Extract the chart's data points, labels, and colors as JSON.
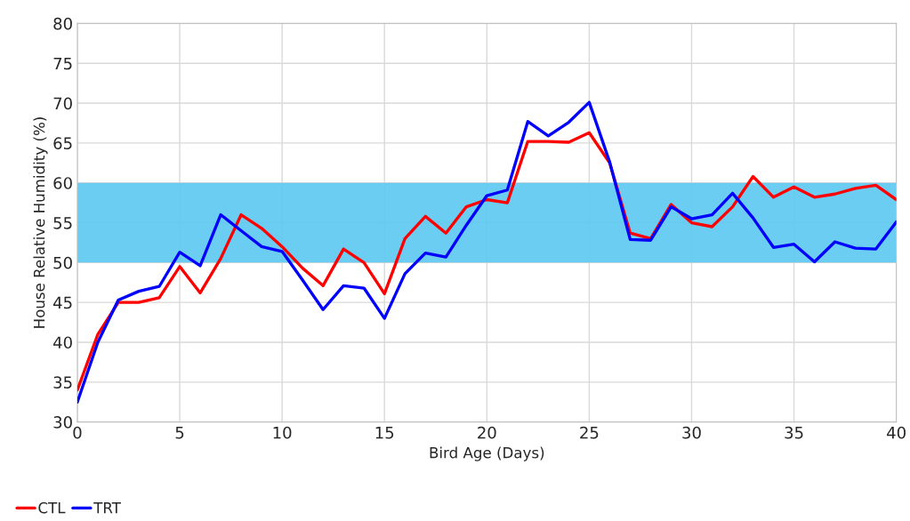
{
  "chart_data": {
    "type": "line",
    "xlabel": "Bird Age (Days)",
    "ylabel": "House Relative Humidity (%)",
    "x": [
      0,
      1,
      2,
      3,
      4,
      5,
      6,
      7,
      8,
      9,
      10,
      11,
      12,
      13,
      14,
      15,
      16,
      17,
      18,
      19,
      20,
      21,
      22,
      23,
      24,
      25,
      26,
      27,
      28,
      29,
      30,
      31,
      32,
      33,
      34,
      35,
      36,
      37,
      38,
      39,
      40
    ],
    "series": [
      {
        "name": "CTL",
        "color": "#ff0000",
        "values": [
          34,
          41,
          45,
          45,
          45.6,
          49.5,
          46.2,
          50.5,
          56,
          54.3,
          52,
          49.3,
          47.1,
          51.7,
          50,
          46.1,
          53,
          55.8,
          53.7,
          57,
          57.9,
          57.5,
          65.2,
          65.2,
          65.1,
          66.3,
          62.5,
          53.7,
          53,
          57.3,
          55,
          54.5,
          57,
          60.8,
          58.2,
          59.5,
          58.2,
          58.6,
          59.3,
          59.7,
          57.9
        ]
      },
      {
        "name": "TRT",
        "color": "#0000ff",
        "values": [
          32.5,
          40,
          45.3,
          46.4,
          47,
          51.3,
          49.6,
          56,
          54,
          52,
          51.4,
          47.8,
          44.1,
          47.1,
          46.8,
          43,
          48.6,
          51.2,
          50.7,
          54.7,
          58.4,
          59.1,
          67.7,
          65.9,
          67.6,
          70.1,
          62.6,
          52.9,
          52.8,
          57,
          55.5,
          56,
          58.7,
          55.6,
          51.9,
          52.3,
          50.1,
          52.6,
          51.8,
          51.7,
          55.1
        ]
      }
    ],
    "bands": [
      {
        "axis": "y",
        "from": 50,
        "to": 60,
        "color": "#5bc8ef"
      }
    ],
    "xlim": [
      0,
      40
    ],
    "xticks": [
      0,
      5,
      10,
      15,
      20,
      25,
      30,
      35,
      40
    ],
    "ylim": [
      30,
      80
    ],
    "yticks": [
      30,
      35,
      40,
      45,
      50,
      55,
      60,
      65,
      70,
      75,
      80
    ],
    "grid": true,
    "legend": "bottom left",
    "marker": "none",
    "line_style": "solid"
  }
}
